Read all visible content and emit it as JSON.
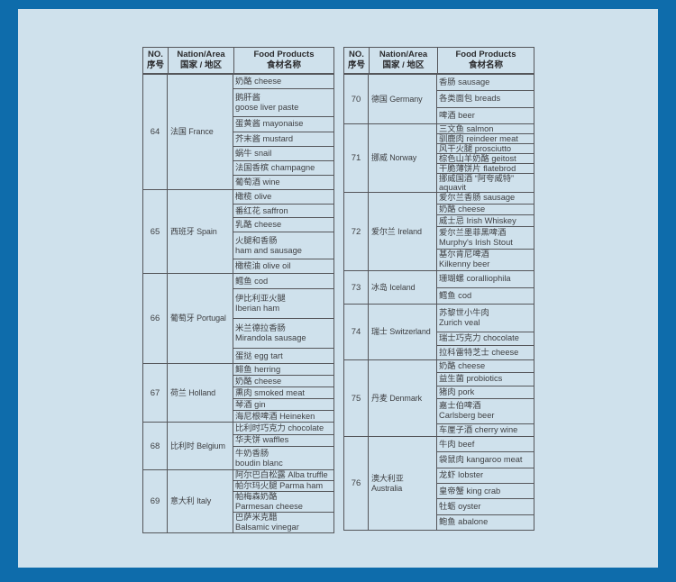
{
  "colors": {
    "frame_blue": "#0e6cab",
    "panel_light_blue": "#cfe1ec",
    "table_border_gray": "#55565a",
    "text_dark": "#3f4043"
  },
  "table_header": {
    "no_en": "NO.",
    "no_zh": "序号",
    "nation_en": "Nation/Area",
    "nation_zh": "国家 / 地区",
    "food_en": "Food Products",
    "food_zh": "食材名称"
  },
  "tables": [
    {
      "rows": [
        {
          "no": "64",
          "nation_zh": "法国",
          "nation_en": "France",
          "items": [
            {
              "t": "奶酪 cheese"
            },
            {
              "t": "鹅肝酱",
              "t2": "goose liver paste"
            },
            {
              "t": "蛋黄酱 mayonaise"
            },
            {
              "t": "芥末酱 mustard"
            },
            {
              "t": "蜗牛 snail"
            },
            {
              "t": "法国香槟 champagne"
            },
            {
              "t": "葡萄酒 wine"
            }
          ]
        },
        {
          "no": "65",
          "nation_zh": "西班牙",
          "nation_en": "Spain",
          "items": [
            {
              "t": "橄榄 olive"
            },
            {
              "t": "番红花 saffron"
            },
            {
              "t": "乳酪 cheese"
            },
            {
              "t": "火腿和香肠",
              "t2": "ham and sausage"
            },
            {
              "t": "橄榄油 olive oil"
            }
          ]
        },
        {
          "no": "66",
          "nation_zh": "葡萄牙",
          "nation_en": "Portugal",
          "items": [
            {
              "t": "鳕鱼 cod"
            },
            {
              "t": "伊比利亚火腿",
              "t2": "Iberian ham"
            },
            {
              "t": "米兰德拉香肠",
              "t2": "Mirandola sausage"
            },
            {
              "t": "蛋挞 egg tart"
            }
          ]
        },
        {
          "no": "67",
          "nation_zh": "荷兰",
          "nation_en": "Holland",
          "items": [
            {
              "t": "鲱鱼 herring"
            },
            {
              "t": "奶酪 cheese"
            },
            {
              "t": "熏肉 smoked meat"
            },
            {
              "t": "琴酒 gin"
            },
            {
              "t": "海尼根啤酒 Heineken"
            }
          ]
        },
        {
          "no": "68",
          "nation_zh": "比利时",
          "nation_en": "Belgium",
          "items": [
            {
              "t": "比利时巧克力 chocolate"
            },
            {
              "t": "华夫饼 waffles"
            },
            {
              "t": "牛奶香肠",
              "t2": "boudin blanc"
            }
          ]
        },
        {
          "no": "69",
          "nation_zh": "意大利",
          "nation_en": "Italy",
          "items": [
            {
              "t": "阿尔巴白松露 Alba truffle"
            },
            {
              "t": "帕尔玛火腿 Parma ham"
            },
            {
              "t": "帕梅森奶酪",
              "t2": "Parmesan cheese"
            },
            {
              "t": "巴萨米克醋",
              "t2": "Balsamic vinegar"
            }
          ]
        }
      ]
    },
    {
      "rows": [
        {
          "no": "70",
          "nation_zh": "德国",
          "nation_en": "Germany",
          "items": [
            {
              "t": "香肠 sausage"
            },
            {
              "t": "各类面包 breads"
            },
            {
              "t": "啤酒 beer"
            }
          ]
        },
        {
          "no": "71",
          "nation_zh": "挪威",
          "nation_en": "Norway",
          "items": [
            {
              "t": "三文鱼 salmon"
            },
            {
              "t": "驯鹿肉 reindeer meat"
            },
            {
              "t": "风干火腿 prosciutto"
            },
            {
              "t": "棕色山羊奶酪 geitost"
            },
            {
              "t": "干脆薄饼片 flatebrod"
            },
            {
              "t": "挪威国酒 “阿夸威特”",
              "t2": "aquavit"
            }
          ]
        },
        {
          "no": "72",
          "nation_zh": "爱尔兰",
          "nation_en": "Ireland",
          "items": [
            {
              "t": "爱尔兰香肠 sausage"
            },
            {
              "t": "奶酪 cheese"
            },
            {
              "t": "威士忌 Irish Whiskey"
            },
            {
              "t": "爱尔兰墨菲黑啤酒",
              "t2": "Murphy's Irish Stout"
            },
            {
              "t": "基尔肯尼啤酒",
              "t2": "Kilkenny beer"
            }
          ]
        },
        {
          "no": "73",
          "nation_zh": "冰岛",
          "nation_en": "Iceland",
          "items": [
            {
              "t": "珊瑚螺 coralliophila"
            },
            {
              "t": "鳕鱼 cod"
            }
          ]
        },
        {
          "no": "74",
          "nation_zh": "瑞士",
          "nation_en": "Switzerland",
          "items": [
            {
              "t": "苏黎世小牛肉",
              "t2": "Zurich veal"
            },
            {
              "t": "瑞士巧克力 chocolate"
            },
            {
              "t": "拉科雷特芝士 cheese"
            }
          ]
        },
        {
          "no": "75",
          "nation_zh": "丹麦",
          "nation_en": "Denmark",
          "items": [
            {
              "t": "奶酪 cheese"
            },
            {
              "t": "益生菌 probiotics"
            },
            {
              "t": "猪肉 pork"
            },
            {
              "t": "嘉士伯啤酒",
              "t2": "Carlsberg beer"
            },
            {
              "t": "车厘子酒 cherry wine"
            }
          ]
        },
        {
          "no": "76",
          "nation_zh": "澳大利亚",
          "nation_en": "Australia",
          "items": [
            {
              "t": "牛肉 beef"
            },
            {
              "t": "袋鼠肉 kangaroo meat"
            },
            {
              "t": "龙虾 lobster"
            },
            {
              "t": "皇帝蟹 king crab"
            },
            {
              "t": "牡蛎 oyster"
            },
            {
              "t": "鲍鱼 abalone"
            }
          ]
        }
      ]
    }
  ]
}
